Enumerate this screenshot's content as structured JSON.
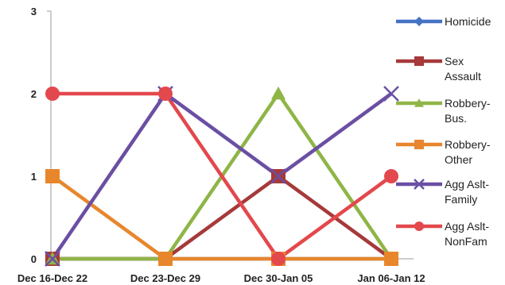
{
  "chart_data": {
    "type": "line",
    "title": "",
    "xlabel": "",
    "ylabel": "",
    "categories": [
      "Dec 16-Dec 22",
      "Dec 23-Dec 29",
      "Dec 30-Jan 05",
      "Jan 06-Jan 12"
    ],
    "ylim": [
      0,
      3
    ],
    "yticks": [
      "0",
      "1",
      "2",
      "3"
    ],
    "grid": false,
    "legend_position": "right",
    "series": [
      {
        "name": "Homicide",
        "legend_lines": [
          "Homicide"
        ],
        "color": "#4472c4",
        "marker": "diamond",
        "values": [
          0,
          0,
          0,
          0
        ]
      },
      {
        "name": "Sex Assault",
        "legend_lines": [
          "Sex",
          "Assault"
        ],
        "color": "#a6393a",
        "marker": "square",
        "values": [
          0,
          0,
          1,
          0
        ]
      },
      {
        "name": "Robbery-Bus.",
        "legend_lines": [
          "Robbery-",
          "Bus."
        ],
        "color": "#8fb546",
        "marker": "triangle",
        "values": [
          0,
          0,
          2,
          0
        ]
      },
      {
        "name": "Robbery-Other",
        "legend_lines": [
          "Robbery-",
          "Other"
        ],
        "color": "#e8862c",
        "marker": "square",
        "values": [
          1,
          0,
          0,
          0
        ]
      },
      {
        "name": "Agg Aslt-Family",
        "legend_lines": [
          "Agg Aslt-",
          "Family"
        ],
        "color": "#6a4fa3",
        "marker": "x",
        "values": [
          0,
          2,
          1,
          2
        ]
      },
      {
        "name": "Agg Aslt-NonFam",
        "legend_lines": [
          "Agg Aslt-",
          "NonFam"
        ],
        "color": "#e3484d",
        "marker": "circle",
        "values": [
          2,
          2,
          0,
          1
        ]
      }
    ]
  }
}
